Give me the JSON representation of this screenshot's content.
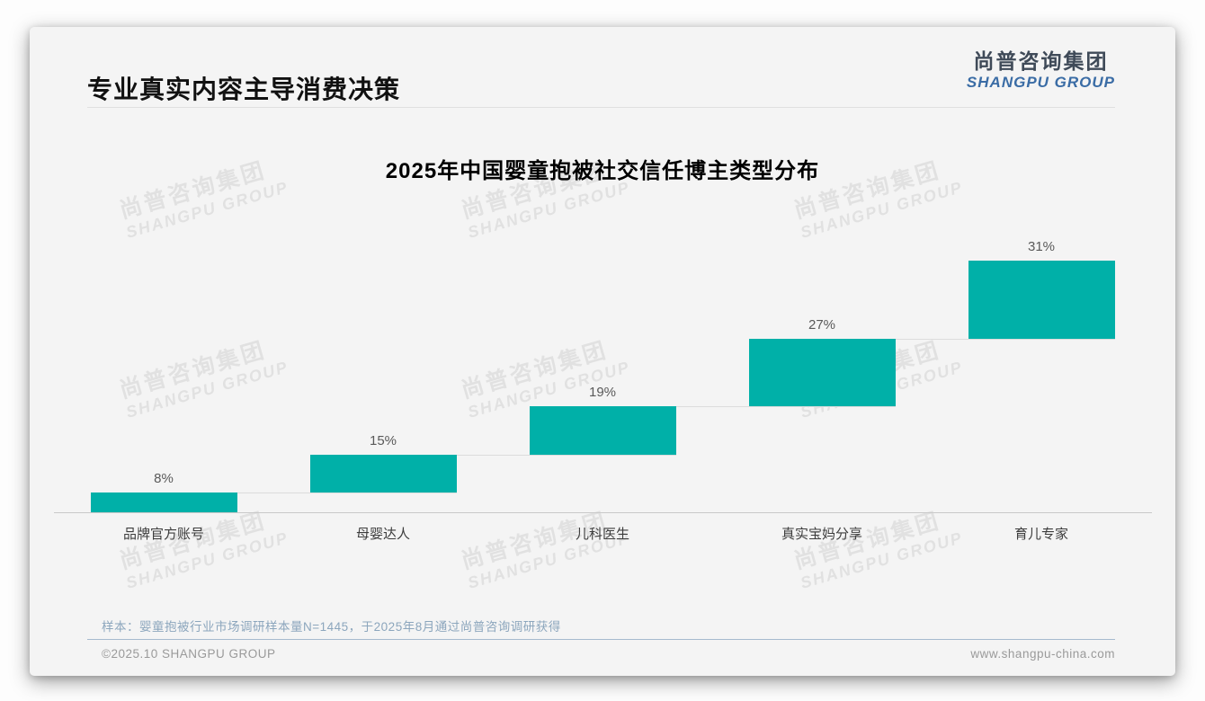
{
  "page": {
    "title": "专业真实内容主导消费决策",
    "logo": {
      "cn": "尚普咨询集团",
      "en": "SHANGPU GROUP"
    },
    "watermark": {
      "cn": "尚普咨询集团",
      "en": "SHANGPU GROUP"
    },
    "footnote": "样本：婴童抱被行业市场调研样本量N=1445，于2025年8月通过尚普咨询调研获得",
    "footer_left": "©2025.10 SHANGPU GROUP",
    "footer_right": "www.shangpu-china.com"
  },
  "colors": {
    "bar": "#00b0a8",
    "logo_cn": "#3f4a58",
    "logo_en": "#3a6ca5",
    "footnote": "#8ca6bd",
    "divider": "#a6bace"
  },
  "chart_data": {
    "type": "bar",
    "subtype": "waterfall-staircase",
    "title": "2025年中国婴童抱被社交信任博主类型分布",
    "categories": [
      "品牌官方账号",
      "母婴达人",
      "儿科医生",
      "真实宝妈分享",
      "育儿专家"
    ],
    "values": [
      8,
      15,
      19,
      27,
      31
    ],
    "labels": [
      "8%",
      "15%",
      "19%",
      "27%",
      "31%"
    ],
    "unit": "%",
    "ylim": [
      0,
      100
    ],
    "grid": false,
    "legend": false,
    "bar_color": "#00b0a8",
    "note": "each bar starts at the cumulative sum of previous bars; thin light connector lines join consecutive bars"
  }
}
